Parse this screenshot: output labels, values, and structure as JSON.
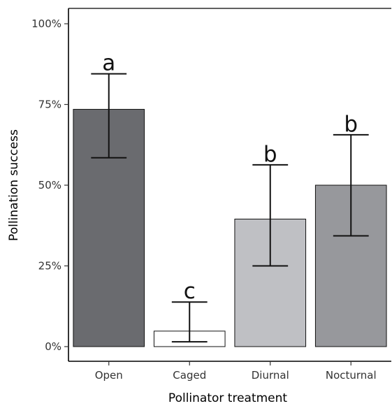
{
  "chart_data": {
    "type": "bar",
    "categories": [
      "Open",
      "Caged",
      "Diurnal",
      "Nocturnal"
    ],
    "values": [
      73.5,
      4.8,
      39.5,
      50.0
    ],
    "error_low": [
      58.5,
      1.5,
      25.0,
      34.3
    ],
    "error_high": [
      84.5,
      13.8,
      56.3,
      65.6
    ],
    "significance_letters": [
      "a",
      "c",
      "b",
      "b"
    ],
    "bar_colors": [
      "#6a6b6f",
      "#ffffff",
      "#bfc0c4",
      "#97989c"
    ],
    "xlabel": "Pollinator treatment",
    "ylabel": "Pollination success",
    "ylim": [
      0,
      100
    ],
    "yticks": [
      0,
      25,
      50,
      75,
      100
    ],
    "ytick_labels": [
      "0%",
      "25%",
      "50%",
      "75%",
      "100%"
    ],
    "grid": false,
    "legend": "none"
  }
}
